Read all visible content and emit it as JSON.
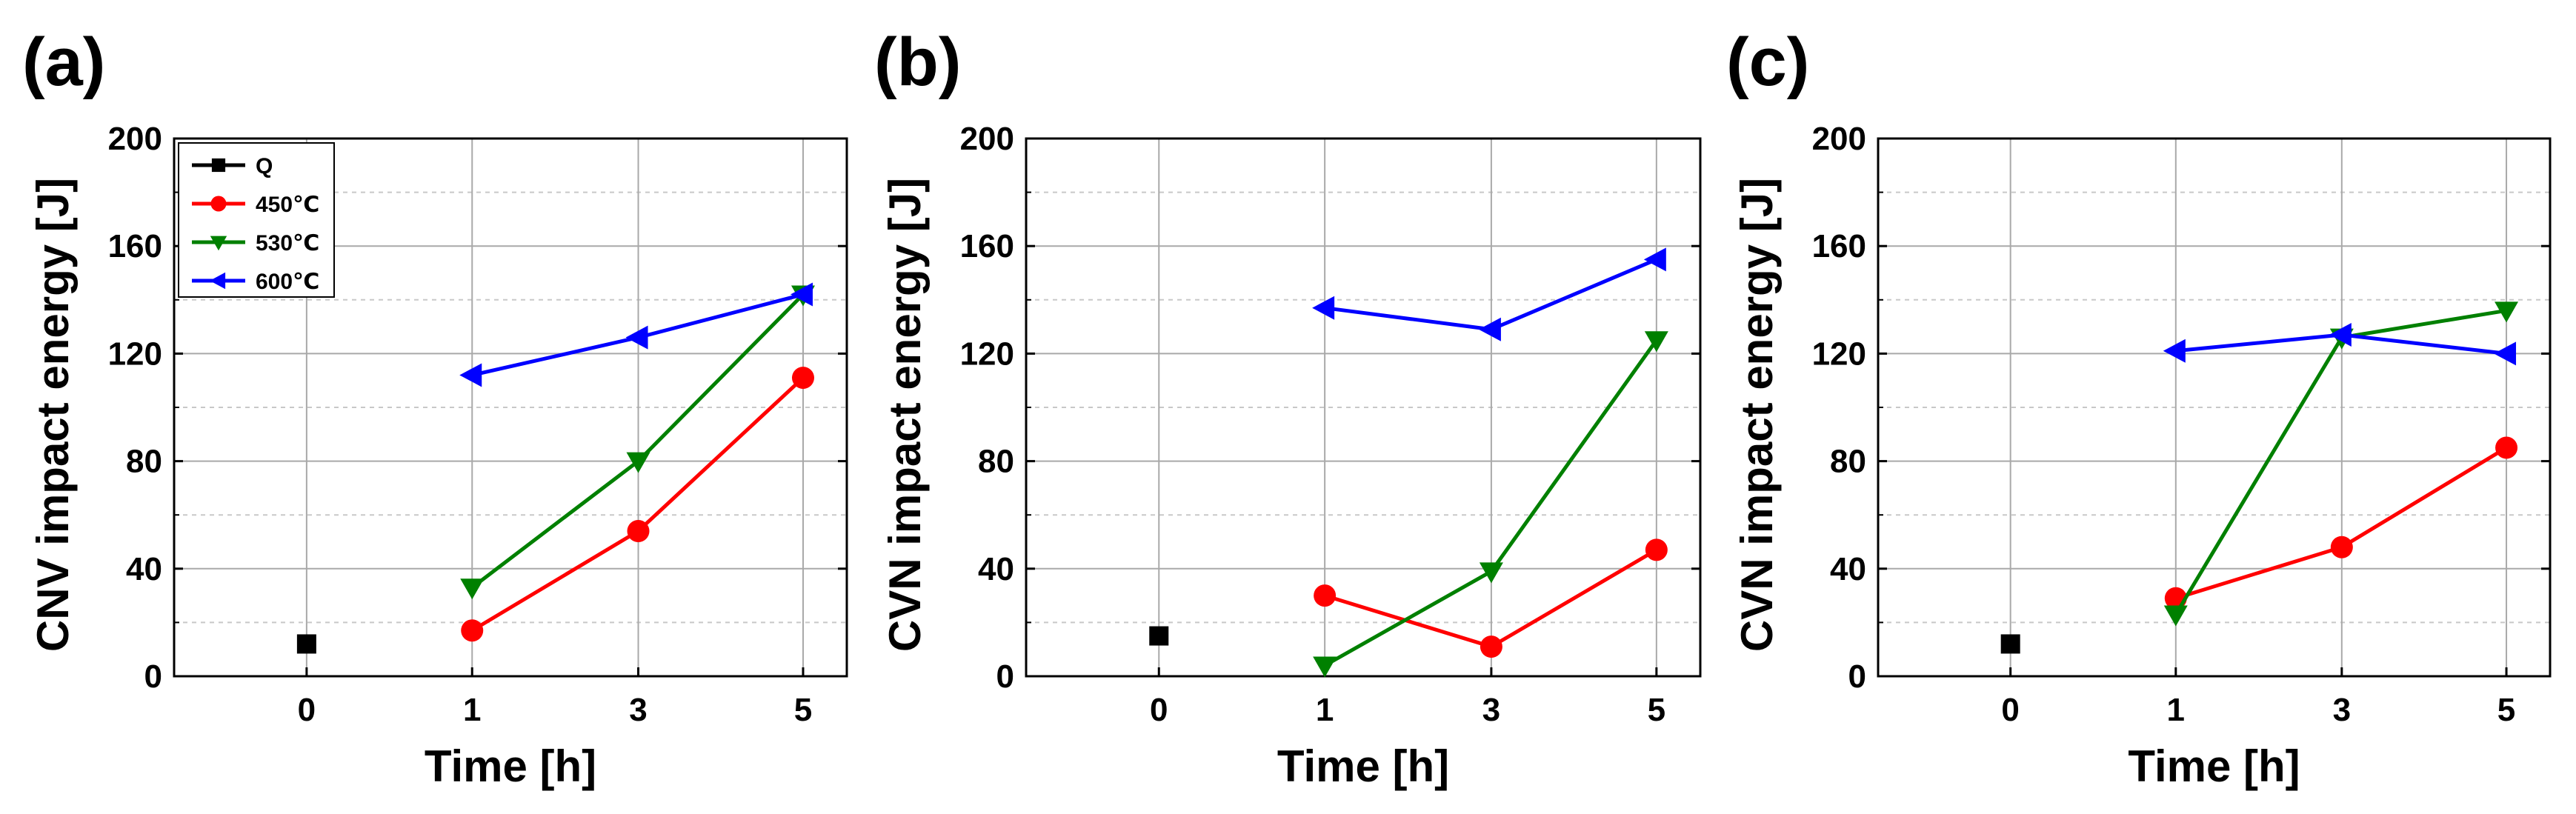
{
  "chart_data": [
    {
      "type": "line",
      "panel_label": "(a)",
      "ylabel": "CNV impact energy [J]",
      "xlabel": "Time [h]",
      "categories": [
        "0",
        "1",
        "3",
        "5"
      ],
      "yticks": [
        "0",
        "40",
        "80",
        "120",
        "160",
        "200"
      ],
      "ylim": [
        0,
        200
      ],
      "grid": true,
      "legend_position": "top-left",
      "series": [
        {
          "name": "Q",
          "color": "#000000",
          "marker": "square",
          "values": [
            12,
            null,
            null,
            null
          ]
        },
        {
          "name": "450℃",
          "color": "#ff0000",
          "marker": "circle",
          "values": [
            null,
            17,
            54,
            111
          ]
        },
        {
          "name": "530℃",
          "color": "#008000",
          "marker": "triangle-down",
          "values": [
            null,
            33,
            80,
            142
          ]
        },
        {
          "name": "600℃",
          "color": "#0000ff",
          "marker": "triangle-left",
          "values": [
            null,
            112,
            126,
            142
          ]
        }
      ]
    },
    {
      "type": "line",
      "panel_label": "(b)",
      "ylabel": "CVN impact energy [J]",
      "xlabel": "Time [h]",
      "categories": [
        "0",
        "1",
        "3",
        "5"
      ],
      "yticks": [
        "0",
        "40",
        "80",
        "120",
        "160",
        "200"
      ],
      "ylim": [
        0,
        200
      ],
      "grid": true,
      "series": [
        {
          "name": "Q",
          "color": "#000000",
          "marker": "square",
          "values": [
            15,
            null,
            null,
            null
          ]
        },
        {
          "name": "450℃",
          "color": "#ff0000",
          "marker": "circle",
          "values": [
            null,
            30,
            11,
            47
          ]
        },
        {
          "name": "530℃",
          "color": "#008000",
          "marker": "triangle-down",
          "values": [
            null,
            4,
            39,
            125
          ]
        },
        {
          "name": "600℃",
          "color": "#0000ff",
          "marker": "triangle-left",
          "values": [
            null,
            137,
            129,
            155
          ]
        }
      ]
    },
    {
      "type": "line",
      "panel_label": "(c)",
      "ylabel": "CVN impact energy [J]",
      "xlabel": "Time [h]",
      "categories": [
        "0",
        "1",
        "3",
        "5"
      ],
      "yticks": [
        "0",
        "40",
        "80",
        "120",
        "160",
        "200"
      ],
      "ylim": [
        0,
        200
      ],
      "grid": true,
      "series": [
        {
          "name": "Q",
          "color": "#000000",
          "marker": "square",
          "values": [
            12,
            null,
            null,
            null
          ]
        },
        {
          "name": "450℃",
          "color": "#ff0000",
          "marker": "circle",
          "values": [
            null,
            29,
            48,
            85
          ]
        },
        {
          "name": "530℃",
          "color": "#008000",
          "marker": "triangle-down",
          "values": [
            null,
            23,
            126,
            136
          ]
        },
        {
          "name": "600℃",
          "color": "#0000ff",
          "marker": "triangle-left",
          "values": [
            null,
            121,
            127,
            120
          ]
        }
      ]
    }
  ]
}
